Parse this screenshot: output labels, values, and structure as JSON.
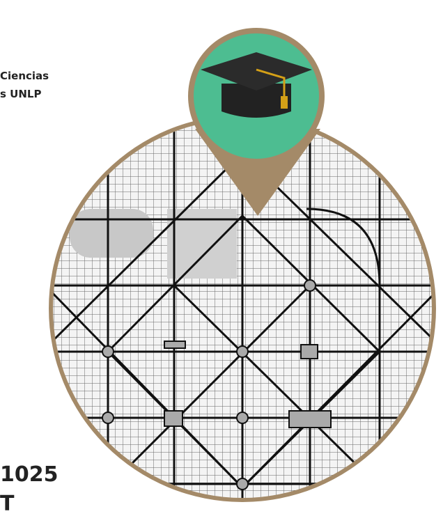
{
  "caption": {
    "line1": "Ciencias",
    "line2": "s UNLP"
  },
  "footer": {
    "number": "1025",
    "fragment": "T"
  }
}
